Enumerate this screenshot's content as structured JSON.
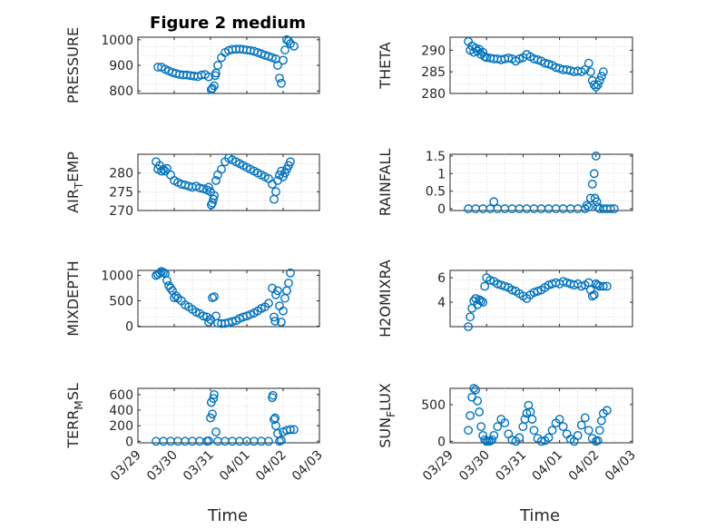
{
  "figure": {
    "title": "Figure 2 medium",
    "marker_color": "#0072BD"
  },
  "chart_data": [
    {
      "type": "scatter",
      "ylabel": "PRESSURE",
      "ylabel_sub": "",
      "xlim": [
        0,
        5
      ],
      "ylim": [
        790,
        1010
      ],
      "yticks": [
        800,
        900,
        1000
      ],
      "xticks": [
        0,
        1,
        2,
        3,
        4,
        5
      ],
      "xticklabels": [],
      "x": [
        0.55,
        0.65,
        0.75,
        0.85,
        0.95,
        1.05,
        1.15,
        1.25,
        1.35,
        1.45,
        1.55,
        1.65,
        1.75,
        1.85,
        1.95,
        2.02,
        2.05,
        2.1,
        2.13,
        2.15,
        2.2,
        2.3,
        2.4,
        2.5,
        2.6,
        2.7,
        2.8,
        2.9,
        3.0,
        3.1,
        3.2,
        3.3,
        3.4,
        3.5,
        3.6,
        3.7,
        3.8,
        3.85,
        3.9,
        3.95,
        4.0,
        4.05,
        4.1,
        4.15,
        4.2,
        4.3
      ],
      "y": [
        893,
        893,
        885,
        878,
        872,
        868,
        864,
        862,
        862,
        860,
        858,
        856,
        862,
        864,
        855,
        805,
        810,
        820,
        860,
        870,
        900,
        930,
        950,
        958,
        962,
        963,
        964,
        962,
        960,
        958,
        955,
        950,
        945,
        940,
        935,
        930,
        925,
        900,
        850,
        830,
        920,
        960,
        1000,
        995,
        985,
        975
      ],
      "grid": true
    },
    {
      "type": "scatter",
      "ylabel": "THETA",
      "ylabel_sub": "",
      "xlim": [
        0,
        5
      ],
      "ylim": [
        280,
        293
      ],
      "yticks": [
        280,
        285,
        290
      ],
      "xticks": [
        0,
        1,
        2,
        3,
        4,
        5
      ],
      "xticklabels": [],
      "x": [
        0.5,
        0.55,
        0.6,
        0.65,
        0.7,
        0.75,
        0.8,
        0.85,
        0.9,
        0.95,
        1.0,
        1.1,
        1.2,
        1.3,
        1.4,
        1.5,
        1.6,
        1.7,
        1.8,
        1.9,
        2.0,
        2.1,
        2.2,
        2.3,
        2.4,
        2.5,
        2.6,
        2.7,
        2.8,
        2.9,
        3.0,
        3.1,
        3.2,
        3.3,
        3.4,
        3.5,
        3.6,
        3.7,
        3.8,
        3.85,
        3.9,
        3.95,
        4.0,
        4.05,
        4.1,
        4.15,
        4.2
      ],
      "y": [
        292,
        290,
        291,
        289.5,
        290.5,
        289.8,
        290.2,
        289,
        289.5,
        288.5,
        288.3,
        288.2,
        288,
        288,
        287.8,
        288,
        288.2,
        288,
        287.5,
        288,
        288.3,
        289,
        288.5,
        288,
        287.8,
        287.5,
        287,
        286.8,
        286.5,
        286,
        285.8,
        285.5,
        285.5,
        285.3,
        285,
        285.2,
        285,
        285.5,
        287,
        285,
        283,
        282,
        281.5,
        282,
        283,
        284,
        285
      ],
      "grid": true
    },
    {
      "type": "scatter",
      "ylabel": "AIR",
      "ylabel_sub": "T",
      "ylabel_rest": "EMP",
      "xlim": [
        0,
        5
      ],
      "ylim": [
        270,
        285
      ],
      "yticks": [
        270,
        275,
        280
      ],
      "xticks": [
        0,
        1,
        2,
        3,
        4,
        5
      ],
      "xticklabels": [],
      "x": [
        0.5,
        0.55,
        0.6,
        0.65,
        0.7,
        0.75,
        0.8,
        0.9,
        1.0,
        1.1,
        1.2,
        1.3,
        1.4,
        1.5,
        1.6,
        1.7,
        1.8,
        1.9,
        1.95,
        2.0,
        2.02,
        2.05,
        2.08,
        2.1,
        2.15,
        2.2,
        2.3,
        2.4,
        2.5,
        2.6,
        2.7,
        2.8,
        2.9,
        3.0,
        3.1,
        3.2,
        3.3,
        3.4,
        3.5,
        3.6,
        3.7,
        3.75,
        3.8,
        3.85,
        3.9,
        3.95,
        4.0,
        4.05,
        4.1,
        4.15,
        4.2
      ],
      "y": [
        283,
        281,
        282,
        280.5,
        281,
        280.5,
        281.2,
        279.5,
        278,
        277.5,
        277,
        276.8,
        276.5,
        276.2,
        276.5,
        276,
        275.8,
        275.5,
        276.2,
        275,
        271.5,
        272,
        273,
        274,
        278,
        279.5,
        281,
        283,
        284,
        283.5,
        283,
        282.5,
        282,
        281.5,
        281,
        280.5,
        280,
        279.5,
        279,
        278.5,
        277,
        273,
        275,
        278,
        279.5,
        280.5,
        279,
        280,
        281,
        282,
        283
      ],
      "grid": true
    },
    {
      "type": "scatter",
      "ylabel": "RAINFALL",
      "ylabel_sub": "",
      "xlim": [
        0,
        5
      ],
      "ylim": [
        -0.05,
        1.55
      ],
      "yticks": [
        0,
        0.5,
        1,
        1.5
      ],
      "xticks": [
        0,
        1,
        2,
        3,
        4,
        5
      ],
      "xticklabels": [],
      "x": [
        0.5,
        0.7,
        0.9,
        1.1,
        1.3,
        1.5,
        1.7,
        1.9,
        2.1,
        2.3,
        2.5,
        2.7,
        2.9,
        3.1,
        3.3,
        3.5,
        3.7,
        3.8,
        3.85,
        3.9,
        3.95,
        3.97,
        4.0,
        4.02,
        4.05,
        4.1,
        4.2,
        4.3,
        4.4,
        4.5,
        1.2,
        3.75
      ],
      "y": [
        0,
        0,
        0,
        0,
        0,
        0,
        0,
        0,
        0,
        0,
        0,
        0,
        0,
        0,
        0,
        0,
        0,
        0.05,
        0.3,
        0.7,
        1.0,
        0.3,
        1.5,
        0.2,
        0.05,
        0,
        0,
        0,
        0,
        0,
        0.2,
        0.1
      ],
      "grid": true
    },
    {
      "type": "scatter",
      "ylabel": "MIXDEPTH",
      "ylabel_sub": "",
      "xlim": [
        0,
        5
      ],
      "ylim": [
        -10,
        1100
      ],
      "yticks": [
        0,
        500,
        1000
      ],
      "xticks": [
        0,
        1,
        2,
        3,
        4,
        5
      ],
      "xticklabels": [],
      "x": [
        0.5,
        0.55,
        0.6,
        0.65,
        0.7,
        0.75,
        0.8,
        0.85,
        0.9,
        0.95,
        1.0,
        1.05,
        1.1,
        1.2,
        1.3,
        1.4,
        1.5,
        1.6,
        1.7,
        1.8,
        1.9,
        1.95,
        2.0,
        2.05,
        2.1,
        2.15,
        2.2,
        2.3,
        2.4,
        2.5,
        2.6,
        2.7,
        2.8,
        2.9,
        3.0,
        3.1,
        3.2,
        3.3,
        3.4,
        3.5,
        3.6,
        3.7,
        3.75,
        3.78,
        3.8,
        3.85,
        3.9,
        3.95,
        4.0,
        4.05,
        4.1,
        4.15,
        4.2
      ],
      "y": [
        1000,
        1020,
        1050,
        1080,
        1060,
        1040,
        900,
        800,
        750,
        700,
        560,
        600,
        550,
        500,
        420,
        380,
        330,
        280,
        250,
        200,
        180,
        80,
        130,
        560,
        580,
        200,
        60,
        50,
        55,
        70,
        90,
        110,
        150,
        180,
        200,
        230,
        260,
        300,
        350,
        380,
        450,
        750,
        180,
        100,
        620,
        700,
        400,
        80,
        300,
        550,
        700,
        850,
        1050
      ],
      "grid": true
    },
    {
      "type": "scatter",
      "ylabel": "H2OMIXRA",
      "ylabel_sub": "",
      "xlim": [
        0,
        5
      ],
      "ylim": [
        2,
        6.6
      ],
      "yticks": [
        4,
        6
      ],
      "xticks": [
        0,
        1,
        2,
        3,
        4,
        5
      ],
      "xticklabels": [],
      "x": [
        0.5,
        0.55,
        0.6,
        0.65,
        0.7,
        0.75,
        0.8,
        0.85,
        0.9,
        0.95,
        1.0,
        1.1,
        1.2,
        1.3,
        1.4,
        1.5,
        1.6,
        1.7,
        1.8,
        1.9,
        2.0,
        2.1,
        2.2,
        2.3,
        2.4,
        2.5,
        2.6,
        2.7,
        2.8,
        2.9,
        3.0,
        3.1,
        3.2,
        3.3,
        3.4,
        3.5,
        3.6,
        3.7,
        3.8,
        3.85,
        3.9,
        3.95,
        4.0,
        4.05,
        4.1,
        4.2,
        4.3
      ],
      "y": [
        2.0,
        2.8,
        3.5,
        4.1,
        4.3,
        3.8,
        4.2,
        4.1,
        4.0,
        5.3,
        6.0,
        5.8,
        5.7,
        5.5,
        5.4,
        5.3,
        5.2,
        5.0,
        4.9,
        4.7,
        4.5,
        4.3,
        4.6,
        4.8,
        4.9,
        5.0,
        5.2,
        5.4,
        5.5,
        5.6,
        5.5,
        5.7,
        5.6,
        5.5,
        5.4,
        5.5,
        5.3,
        5.4,
        5.6,
        5.0,
        4.5,
        4.6,
        5.5,
        5.4,
        5.3,
        5.3,
        5.3
      ],
      "grid": true
    },
    {
      "type": "scatter",
      "ylabel": "TERR",
      "ylabel_sub": "M",
      "ylabel_rest": "SL",
      "xlim": [
        0,
        5
      ],
      "ylim": [
        -20,
        680
      ],
      "yticks": [
        0,
        200,
        400,
        600
      ],
      "xticks": [
        0,
        1,
        2,
        3,
        4,
        5
      ],
      "xticklabels": [
        "03/29",
        "03/30",
        "03/31",
        "04/01",
        "04/02",
        "04/03"
      ],
      "x": [
        0.5,
        0.7,
        0.9,
        1.1,
        1.3,
        1.5,
        1.7,
        1.9,
        1.95,
        2.0,
        2.02,
        2.05,
        2.08,
        2.1,
        2.15,
        2.2,
        2.4,
        2.6,
        2.8,
        3.0,
        3.2,
        3.4,
        3.6,
        3.7,
        3.72,
        3.75,
        3.78,
        3.8,
        3.85,
        3.9,
        3.95,
        4.0,
        4.1,
        4.2,
        4.3
      ],
      "y": [
        0,
        0,
        0,
        0,
        0,
        0,
        0,
        0,
        5,
        300,
        500,
        350,
        550,
        600,
        120,
        0,
        0,
        0,
        0,
        0,
        0,
        0,
        0,
        560,
        590,
        280,
        300,
        200,
        100,
        0,
        10,
        120,
        140,
        150,
        150
      ],
      "grid": true
    },
    {
      "type": "scatter",
      "ylabel": "SUN",
      "ylabel_sub": "F",
      "ylabel_rest": "LUX",
      "xlim": [
        0,
        5
      ],
      "ylim": [
        -20,
        720
      ],
      "yticks": [
        0,
        500
      ],
      "xticks": [
        0,
        1,
        2,
        3,
        4,
        5
      ],
      "xticklabels": [
        "03/29",
        "03/30",
        "03/31",
        "04/01",
        "04/02",
        "04/03"
      ],
      "x": [
        0.5,
        0.55,
        0.6,
        0.65,
        0.7,
        0.75,
        0.8,
        0.85,
        0.9,
        0.95,
        1.0,
        1.05,
        1.1,
        1.15,
        1.2,
        1.3,
        1.4,
        1.5,
        1.6,
        1.7,
        1.8,
        1.9,
        2.0,
        2.05,
        2.1,
        2.15,
        2.2,
        2.25,
        2.3,
        2.4,
        2.5,
        2.6,
        2.7,
        2.8,
        2.9,
        3.0,
        3.1,
        3.2,
        3.3,
        3.4,
        3.5,
        3.6,
        3.7,
        3.8,
        3.9,
        4.0,
        4.05,
        4.1,
        4.15,
        4.2,
        4.3
      ],
      "y": [
        150,
        350,
        600,
        720,
        700,
        550,
        400,
        200,
        80,
        20,
        0,
        0,
        5,
        20,
        80,
        200,
        300,
        250,
        100,
        20,
        0,
        50,
        200,
        300,
        380,
        490,
        400,
        300,
        150,
        40,
        0,
        10,
        50,
        150,
        250,
        300,
        200,
        100,
        30,
        0,
        80,
        220,
        320,
        150,
        40,
        0,
        10,
        150,
        280,
        380,
        420
      ],
      "grid": true
    }
  ],
  "axes_labels": {
    "xlabel_left": "Time",
    "xlabel_right": "Time"
  }
}
